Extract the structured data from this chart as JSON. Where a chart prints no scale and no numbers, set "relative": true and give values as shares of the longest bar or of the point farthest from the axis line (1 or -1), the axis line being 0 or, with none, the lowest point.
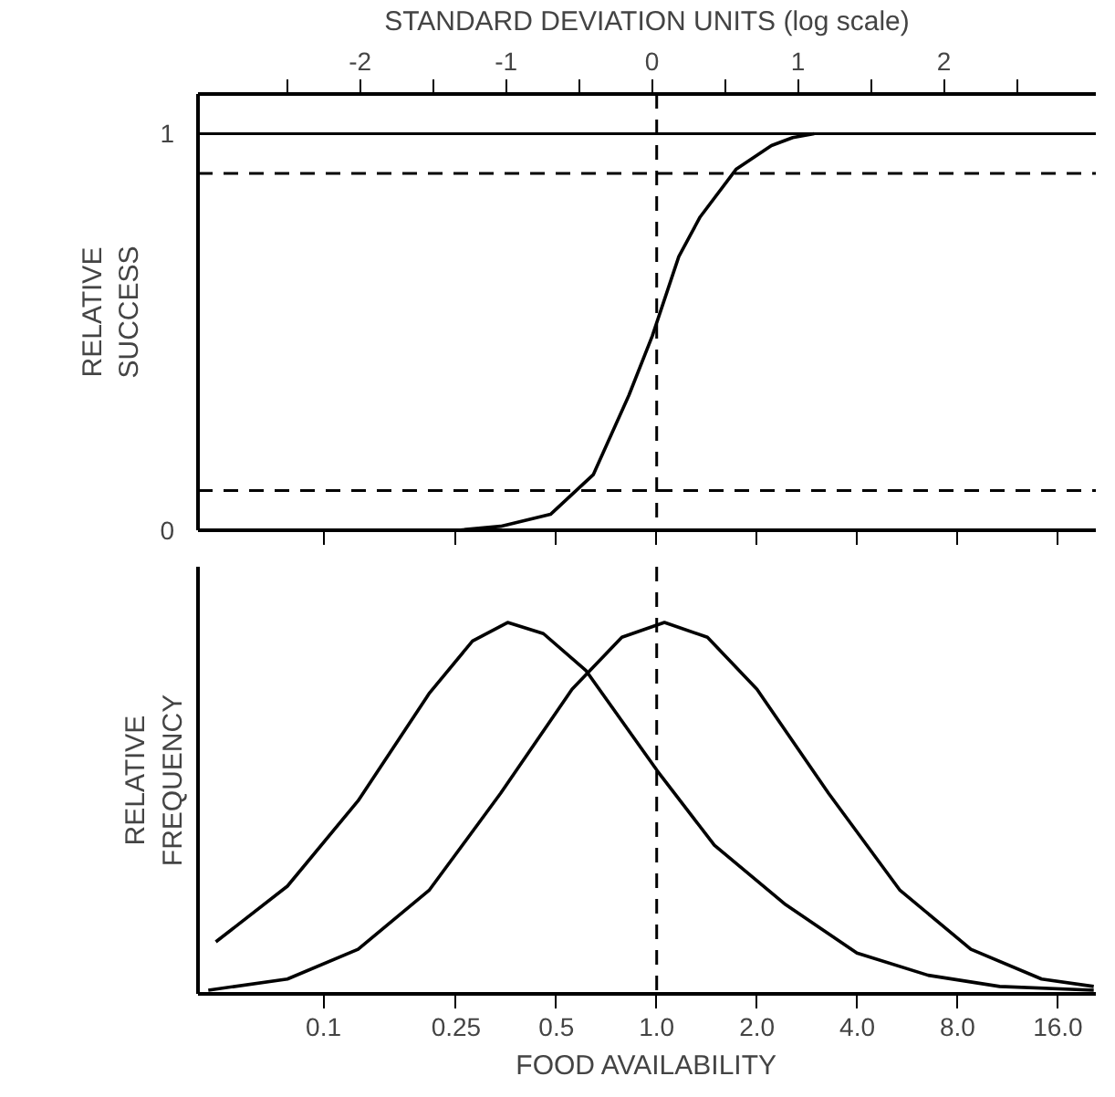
{
  "chart_data": [
    {
      "type": "line",
      "ylabel": "RELATIVE SUCCESS",
      "x2label": "STANDARD DEVIATION UNITS (log scale)",
      "log": "x",
      "xlim": [
        0.042,
        20.8
      ],
      "xticks": [
        {
          "value": 0.1,
          "label": null
        },
        {
          "value": 0.25,
          "label": null
        },
        {
          "value": 0.5,
          "label": null
        },
        {
          "value": 1,
          "label": null
        },
        {
          "value": 2,
          "label": null
        },
        {
          "value": 4,
          "label": null
        },
        {
          "value": 8,
          "label": null
        },
        {
          "value": 16,
          "label": null
        }
      ],
      "x2lim": [
        -3.11,
        3.04
      ],
      "x2ticks": [
        {
          "value": -2.5,
          "label": null
        },
        -2,
        {
          "value": -1.5,
          "label": null
        },
        -1,
        {
          "value": -0.5,
          "label": null
        },
        0,
        {
          "value": 0.5,
          "label": null
        },
        1,
        {
          "value": 1.5,
          "label": null
        },
        2,
        {
          "value": 2.5,
          "label": null
        }
      ],
      "ylim": [
        0,
        1.1
      ],
      "yticks": [
        0,
        1
      ],
      "tick_labels": "y",
      "series": [
        {
          "color": "#000000",
          "x": [
            0.253,
            0.34,
            0.48,
            0.645,
            0.825,
            0.97,
            1.165,
            1.35,
            1.73,
            2.21,
            2.56,
            2.97
          ],
          "values": [
            0.0,
            0.01,
            0.04,
            0.14,
            0.34,
            0.49,
            0.69,
            0.79,
            0.91,
            0.97,
            0.99,
            1.0
          ]
        }
      ],
      "ref_lines": [
        {
          "axis": "y",
          "value": 1,
          "line_style": "solid"
        },
        {
          "axis": "y",
          "value": 0.9,
          "line_style": "dashed"
        },
        {
          "axis": "y",
          "value": 0.1,
          "line_style": "dashed"
        },
        {
          "axis": "x",
          "value": 1,
          "line_style": "dashed"
        }
      ]
    },
    {
      "type": "line",
      "ylabel": "RELATIVE FREQUENCY",
      "xlabel": "FOOD AVAILABILITY",
      "log": "x",
      "relative": true,
      "xlim": [
        0.042,
        20.8
      ],
      "xticks": [
        0.1,
        0.25,
        0.5,
        {
          "value": 1,
          "label": "1.0"
        },
        {
          "value": 2,
          "label": "2.0"
        },
        {
          "value": 4,
          "label": "4.0"
        },
        {
          "value": 8,
          "label": "8.0"
        },
        {
          "value": 16,
          "label": "16.0"
        }
      ],
      "tick_labels": "x",
      "series": [
        {
          "color": "#000000",
          "x": [
            0.0475,
            0.0779,
            0.127,
            0.208,
            0.28,
            0.357,
            0.457,
            0.614,
            1.005,
            1.49,
            2.44,
            3.99,
            6.53,
            10.7,
            20.5
          ],
          "values": [
            0.14,
            0.29,
            0.52,
            0.81,
            0.95,
            1.0,
            0.97,
            0.87,
            0.6,
            0.4,
            0.24,
            0.11,
            0.05,
            0.02,
            0.01
          ]
        },
        {
          "color": "#000000",
          "x": [
            0.0451,
            0.0779,
            0.127,
            0.208,
            0.34,
            0.557,
            0.786,
            1.055,
            1.42,
            2.0,
            3.28,
            5.36,
            8.77,
            14.3,
            20.5
          ],
          "values": [
            0.01,
            0.04,
            0.12,
            0.28,
            0.54,
            0.82,
            0.96,
            1.0,
            0.96,
            0.82,
            0.54,
            0.28,
            0.12,
            0.04,
            0.02
          ]
        }
      ],
      "ref_lines": [
        {
          "axis": "x",
          "value": 1,
          "line_style": "dashed"
        }
      ]
    }
  ]
}
